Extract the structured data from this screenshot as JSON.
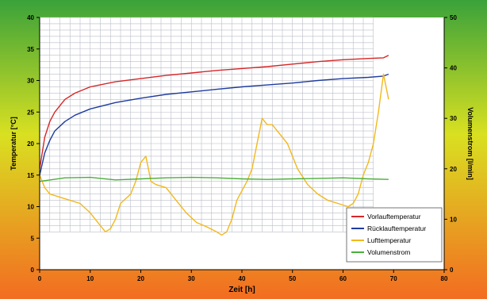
{
  "chart_data": {
    "type": "line",
    "title": "",
    "xlabel": "Zeit [h]",
    "ylabel_left": "Temperatur [°C]",
    "ylabel_right": "Volumenstrom [l/min]",
    "xlim": [
      0,
      80
    ],
    "ylim_left": [
      0,
      40
    ],
    "ylim_right": [
      0,
      50
    ],
    "x_ticks": [
      "0",
      "10",
      "20",
      "30",
      "40",
      "50",
      "60",
      "70",
      "80"
    ],
    "y_left_ticks": [
      "0",
      "5",
      "10",
      "15",
      "20",
      "25",
      "30",
      "35",
      "40"
    ],
    "y_right_ticks": [
      "0",
      "10",
      "20",
      "30",
      "40",
      "50"
    ],
    "grid": true,
    "legend_position": "bottom-right",
    "series": [
      {
        "name": "Vorlauftemperatur",
        "axis": "left",
        "color": "#d62728",
        "x": [
          0,
          1,
          2,
          3,
          5,
          7,
          10,
          15,
          20,
          25,
          30,
          35,
          40,
          45,
          50,
          55,
          60,
          65,
          68,
          69
        ],
        "y": [
          16,
          21,
          23.5,
          25,
          27,
          28,
          29,
          29.8,
          30.3,
          30.8,
          31.2,
          31.6,
          31.9,
          32.2,
          32.6,
          33,
          33.3,
          33.5,
          33.6,
          34
        ]
      },
      {
        "name": "Rücklauftemperatur",
        "axis": "left",
        "color": "#1f3c9e",
        "x": [
          0,
          1,
          2,
          3,
          5,
          7,
          10,
          15,
          20,
          25,
          30,
          35,
          40,
          45,
          50,
          55,
          60,
          65,
          68,
          69
        ],
        "y": [
          15,
          18.5,
          20.5,
          22,
          23.5,
          24.5,
          25.5,
          26.5,
          27.2,
          27.8,
          28.2,
          28.6,
          29,
          29.3,
          29.6,
          30,
          30.3,
          30.5,
          30.7,
          31
        ]
      },
      {
        "name": "Lufttemperatur",
        "axis": "left",
        "color": "#f2b81c",
        "x": [
          0,
          1,
          2,
          4,
          6,
          8,
          10,
          12,
          13,
          14,
          15,
          16,
          18,
          19,
          20,
          21,
          22,
          23,
          25,
          27,
          29,
          31,
          33,
          35,
          36,
          37,
          38,
          39,
          40,
          41,
          42,
          43,
          44,
          45,
          46,
          47,
          49,
          51,
          53,
          55,
          57,
          59,
          61,
          62,
          63,
          64,
          65,
          66,
          67,
          68,
          69
        ],
        "y": [
          15,
          13,
          12,
          11.5,
          11,
          10.5,
          9,
          7,
          6,
          6.5,
          8,
          10.5,
          12,
          14,
          17,
          18,
          14,
          13.5,
          13,
          11,
          9,
          7.5,
          6.8,
          6,
          5.5,
          6,
          8,
          11,
          12.5,
          14,
          16,
          20,
          24,
          23,
          23,
          22,
          20,
          16,
          13.5,
          12,
          11,
          10.5,
          10,
          10.5,
          12,
          15,
          17,
          20,
          25,
          31,
          27
        ]
      },
      {
        "name": "Volumenstrom",
        "axis": "right",
        "color": "#4caf3a",
        "x": [
          0,
          5,
          10,
          15,
          20,
          25,
          30,
          35,
          40,
          45,
          50,
          55,
          60,
          65,
          69
        ],
        "y": [
          17.5,
          18.2,
          18.3,
          17.8,
          18,
          18.2,
          18.3,
          18.2,
          18,
          17.9,
          18,
          18.1,
          18.2,
          18,
          17.9
        ]
      }
    ]
  }
}
